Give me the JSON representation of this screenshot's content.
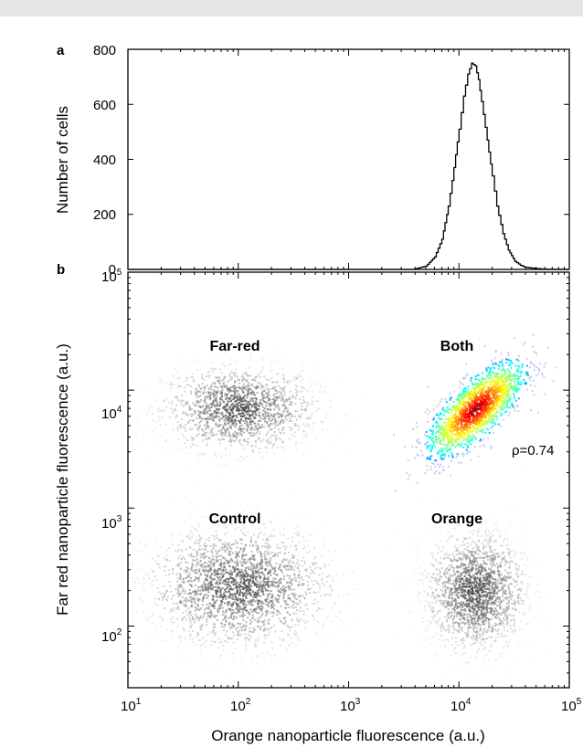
{
  "chart_data": [
    {
      "panel": "a",
      "type": "line",
      "xlabel": "",
      "ylabel": "Number of cells",
      "x_scale": "log",
      "xlim": [
        10,
        100000
      ],
      "ylim": [
        0,
        800
      ],
      "yticks": [
        0,
        200,
        400,
        600,
        800
      ],
      "series": [
        {
          "x": [
            4000,
            5000,
            6000,
            7000,
            8000,
            9000,
            10000,
            11000,
            12000,
            13000,
            14000,
            15000,
            16000,
            18000,
            20000,
            22000,
            25000,
            28000,
            32000,
            36000,
            40000,
            50000,
            60000
          ],
          "values": [
            2,
            12,
            45,
            110,
            230,
            370,
            510,
            630,
            710,
            750,
            740,
            690,
            610,
            470,
            340,
            230,
            130,
            70,
            30,
            15,
            8,
            3,
            1
          ]
        }
      ]
    },
    {
      "panel": "b",
      "type": "scatter",
      "xlabel": "Orange nanoparticle fluorescence  (a.u.)",
      "ylabel": "Far red nanoparticle fluorescence  (a.u.)",
      "x_scale": "log",
      "y_scale": "log",
      "xlim": [
        10,
        100000
      ],
      "ylim": [
        30,
        100000
      ],
      "xticks": [
        "10",
        "10",
        "10",
        "10",
        "10"
      ],
      "xtick_exponents": [
        "1",
        "2",
        "3",
        "4",
        "5"
      ],
      "yticks": [
        "10",
        "10",
        "10",
        "10"
      ],
      "ytick_exponents": [
        "2",
        "3",
        "4",
        "5"
      ],
      "populations": [
        {
          "name": "Far-red",
          "center": [
            100,
            7000
          ],
          "spread": [
            0.35,
            0.18
          ],
          "count": 1500,
          "density_colormap": false
        },
        {
          "name": "Both",
          "center": [
            14000,
            7000
          ],
          "spread": [
            0.22,
            0.2
          ],
          "correlation": 0.74,
          "count": 1800,
          "density_colormap": true
        },
        {
          "name": "Control",
          "center": [
            100,
            220
          ],
          "spread": [
            0.4,
            0.25
          ],
          "count": 2200,
          "density_colormap": false
        },
        {
          "name": "Orange",
          "center": [
            14000,
            200
          ],
          "spread": [
            0.22,
            0.25
          ],
          "count": 1800,
          "density_colormap": false
        }
      ],
      "annotations": [
        {
          "text": "ρ=0.74",
          "x": 40000,
          "y": 4000
        }
      ]
    }
  ],
  "labels": {
    "panel_a": "a",
    "panel_b": "b",
    "far_red": "Far-red",
    "both": "Both",
    "control": "Control",
    "orange": "Orange",
    "rho": "ρ=0.74",
    "ylabel_a": "Number of cells",
    "ylabel_b": "Far red nanoparticle fluorescence  (a.u.)",
    "xlabel_b": "Orange nanoparticle fluorescence  (a.u.)",
    "a_ytick_0": "0",
    "a_ytick_200": "200",
    "a_ytick_400": "400",
    "a_ytick_600": "600",
    "a_ytick_800": "800",
    "base": "10",
    "exp1": "1",
    "exp2": "2",
    "exp3": "3",
    "exp4": "4",
    "exp5": "5"
  }
}
